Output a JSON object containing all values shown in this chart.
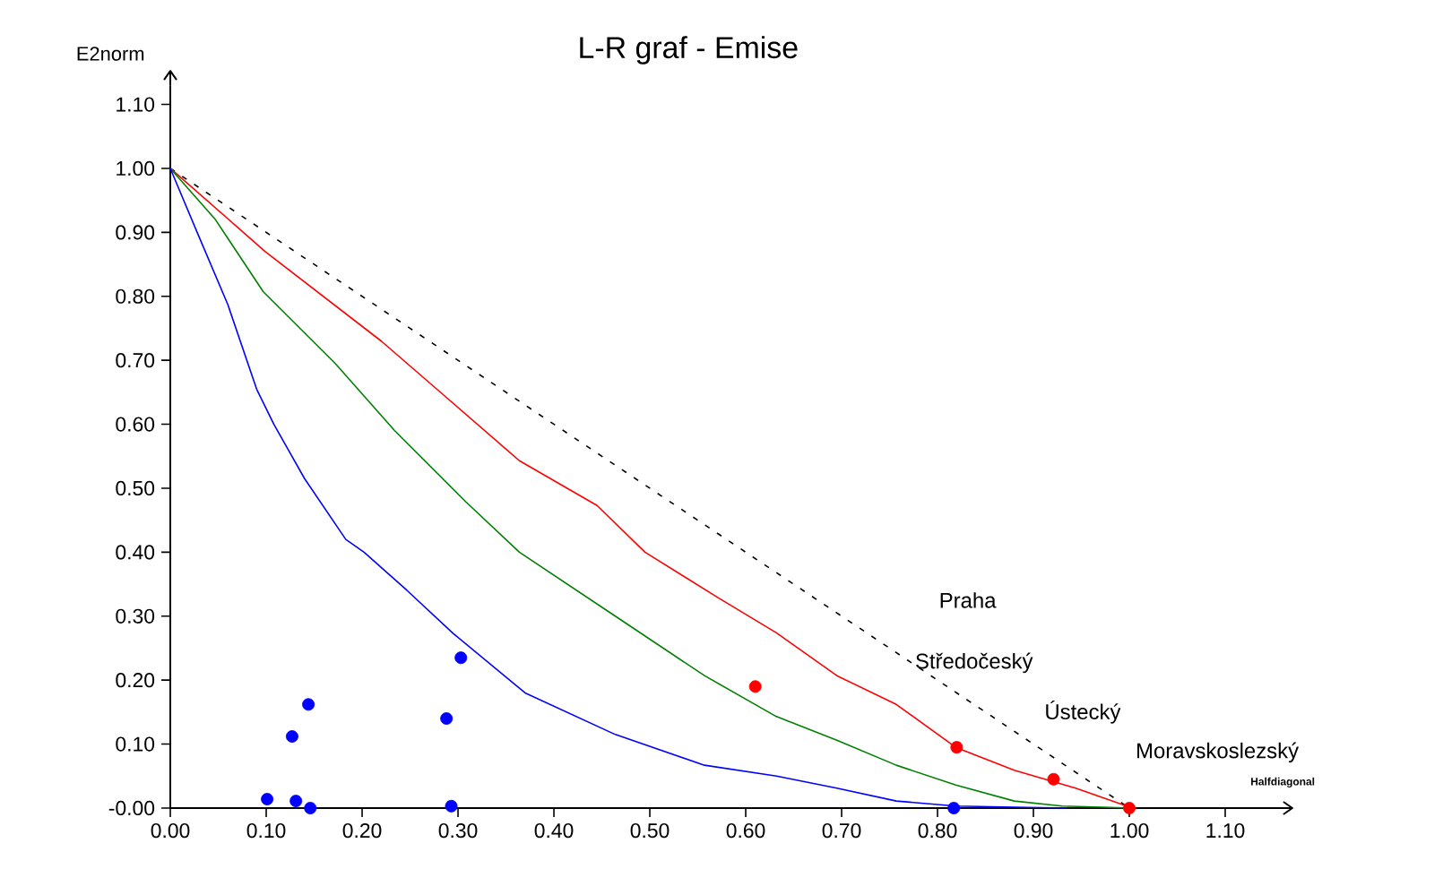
{
  "chart_data": {
    "type": "line",
    "title": "L-R graf - Emise",
    "xlabel": "Halfdiagonal",
    "ylabel": "E2norm",
    "xlim": [
      0,
      1.17
    ],
    "ylim": [
      0,
      1.13
    ],
    "xticks": [
      {
        "value": 0,
        "label": "0.00"
      },
      {
        "value": 0.1,
        "label": "0.10"
      },
      {
        "value": 0.2,
        "label": "0.20"
      },
      {
        "value": 0.3,
        "label": "0.30"
      },
      {
        "value": 0.4,
        "label": "0.40"
      },
      {
        "value": 0.5,
        "label": "0.50"
      },
      {
        "value": 0.6,
        "label": "0.60"
      },
      {
        "value": 0.7,
        "label": "0.70"
      },
      {
        "value": 0.8,
        "label": "0.80"
      },
      {
        "value": 0.9,
        "label": "0.90"
      },
      {
        "value": 1,
        "label": "1.00"
      },
      {
        "value": 1.1,
        "label": "1.10"
      }
    ],
    "yticks": [
      {
        "value": 0,
        "label": "-0.00"
      },
      {
        "value": 0.1,
        "label": "0.10"
      },
      {
        "value": 0.2,
        "label": "0.20"
      },
      {
        "value": 0.3,
        "label": "0.30"
      },
      {
        "value": 0.4,
        "label": "0.40"
      },
      {
        "value": 0.5,
        "label": "0.50"
      },
      {
        "value": 0.6,
        "label": "0.60"
      },
      {
        "value": 0.7,
        "label": "0.70"
      },
      {
        "value": 0.8,
        "label": "0.80"
      },
      {
        "value": 0.9,
        "label": "0.90"
      },
      {
        "value": 1,
        "label": "1.00"
      },
      {
        "value": 1.1,
        "label": "1.10"
      }
    ],
    "series": [
      {
        "color": "#000000",
        "line_style": "dashed",
        "marker": "none",
        "x": [
          0,
          1
        ],
        "values": [
          1,
          0
        ]
      },
      {
        "color": "#ff0000",
        "line_style": "solid",
        "marker": "none",
        "x": [
          0,
          0.099,
          0.22,
          0.284,
          0.364,
          0.445,
          0.495,
          0.57,
          0.632,
          0.695,
          0.757,
          0.819,
          0.88,
          0.944,
          0.994,
          1.0
        ],
        "values": [
          1,
          0.87,
          0.73,
          0.647,
          0.543,
          0.473,
          0.4,
          0.33,
          0.274,
          0.207,
          0.162,
          0.095,
          0.059,
          0.031,
          0.005,
          0
        ]
      },
      {
        "color": "#008000",
        "line_style": "solid",
        "marker": "none",
        "x": [
          0,
          0.047,
          0.097,
          0.172,
          0.234,
          0.308,
          0.364,
          0.464,
          0.557,
          0.632,
          0.695,
          0.757,
          0.819,
          0.88,
          0.93,
          0.98,
          1.0
        ],
        "values": [
          1,
          0.92,
          0.807,
          0.695,
          0.59,
          0.479,
          0.4,
          0.3,
          0.207,
          0.143,
          0.106,
          0.067,
          0.036,
          0.011,
          0.003,
          0.001,
          0
        ]
      },
      {
        "color": "#0000ff",
        "line_style": "solid",
        "marker": "none",
        "x": [
          0,
          0.028,
          0.06,
          0.09,
          0.108,
          0.14,
          0.183,
          0.202,
          0.247,
          0.295,
          0.37,
          0.464,
          0.557,
          0.632,
          0.695,
          0.757,
          0.819,
          0.893,
          0.935
        ],
        "values": [
          1,
          0.9,
          0.787,
          0.655,
          0.6,
          0.515,
          0.42,
          0.4,
          0.34,
          0.273,
          0.18,
          0.115,
          0.067,
          0.05,
          0.031,
          0.011,
          0.003,
          0.001,
          0
        ]
      },
      {
        "type": "scatter",
        "color": "#ff0000",
        "marker": "circle",
        "x": [
          0.61,
          0.82,
          0.921,
          1.0
        ],
        "values": [
          0.19,
          0.095,
          0.045,
          0
        ]
      },
      {
        "type": "scatter",
        "color": "#0000ff",
        "marker": "circle",
        "x": [
          0.101,
          0.127,
          0.144,
          0.131,
          0.146,
          0.288,
          0.293,
          0.303,
          0.817
        ],
        "values": [
          0.014,
          0.112,
          0.162,
          0.011,
          0.0,
          0.14,
          0.003,
          0.235,
          0
        ]
      }
    ],
    "annotations": [
      "Praha",
      "Středočeský",
      "Ústecký",
      "Moravskoslezský"
    ]
  }
}
